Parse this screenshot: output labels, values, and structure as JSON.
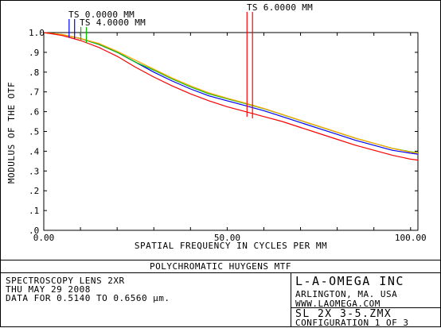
{
  "chart_data": {
    "type": "line",
    "title": "POLYCHROMATIC HUYGENS MTF",
    "xlabel": "SPATIAL FREQUENCY IN CYCLES PER MM",
    "ylabel": "MODULUS OF THE OTF",
    "xlim": [
      0,
      102
    ],
    "ylim": [
      0,
      1.0
    ],
    "x_ticks": [
      "0.00",
      "50.00",
      "100.00"
    ],
    "y_ticks": [
      ".0",
      ".1",
      ".2",
      ".3",
      ".4",
      ".5",
      ".6",
      ".7",
      ".8",
      ".9",
      "1.0"
    ],
    "grid": false,
    "legend": "field markers above plot",
    "x": [
      0,
      5,
      10,
      15,
      20,
      25,
      30,
      35,
      40,
      45,
      50,
      55,
      60,
      65,
      70,
      75,
      80,
      85,
      90,
      95,
      100,
      102
    ],
    "series": [
      {
        "name": "",
        "color": "#0000ff",
        "values": [
          1.0,
          0.99,
          0.97,
          0.94,
          0.9,
          0.85,
          0.8,
          0.755,
          0.715,
          0.68,
          0.655,
          0.63,
          0.605,
          0.575,
          0.545,
          0.515,
          0.485,
          0.455,
          0.43,
          0.405,
          0.39,
          0.385
        ]
      },
      {
        "name": "",
        "color": "#00c000",
        "values": [
          1.0,
          0.99,
          0.97,
          0.94,
          0.9,
          0.85,
          0.81,
          0.765,
          0.725,
          0.69,
          0.665,
          0.64,
          0.615,
          0.585,
          0.555,
          0.525,
          0.495,
          0.465,
          0.44,
          0.415,
          0.397,
          0.392
        ]
      },
      {
        "name": "",
        "color": "#ffa000",
        "values": [
          1.0,
          0.99,
          0.97,
          0.945,
          0.905,
          0.86,
          0.815,
          0.77,
          0.73,
          0.695,
          0.668,
          0.643,
          0.616,
          0.586,
          0.556,
          0.526,
          0.496,
          0.466,
          0.44,
          0.414,
          0.395,
          0.39
        ]
      },
      {
        "name": "",
        "color": "#ff0000",
        "values": [
          1.0,
          0.985,
          0.96,
          0.925,
          0.88,
          0.825,
          0.775,
          0.73,
          0.69,
          0.655,
          0.625,
          0.6,
          0.575,
          0.55,
          0.52,
          0.49,
          0.46,
          0.43,
          0.405,
          0.38,
          0.36,
          0.355
        ]
      }
    ],
    "field_markers": [
      {
        "label": "TS 0.0000 MM",
        "colors": [
          "#0000ff",
          "#0000ff"
        ],
        "x": [
          6.9,
          8.4
        ]
      },
      {
        "label": "TS 4.0000 MM",
        "colors": [
          "#00c000",
          "#00c000"
        ],
        "x": [
          10.1,
          11.6
        ]
      },
      {
        "label": "TS 6.0000 MM",
        "colors": [
          "#ff0000",
          "#ff0000"
        ],
        "x": [
          55.4,
          56.9
        ]
      }
    ]
  },
  "footer": {
    "title": "POLYCHROMATIC HUYGENS MTF",
    "lens_name": "SPECTROSCOPY LENS 2XR",
    "date": "THU MAY 29 2008",
    "data_range": "DATA FOR 0.5140 TO 0.6560 μm.",
    "company": "L-A-OMEGA INC",
    "city": "ARLINGTON, MA. USA",
    "website": "WWW.LAOMEGA.COM",
    "file": "SL 2X 3-5.ZMX",
    "configuration": "CONFIGURATION 1 OF 3"
  }
}
